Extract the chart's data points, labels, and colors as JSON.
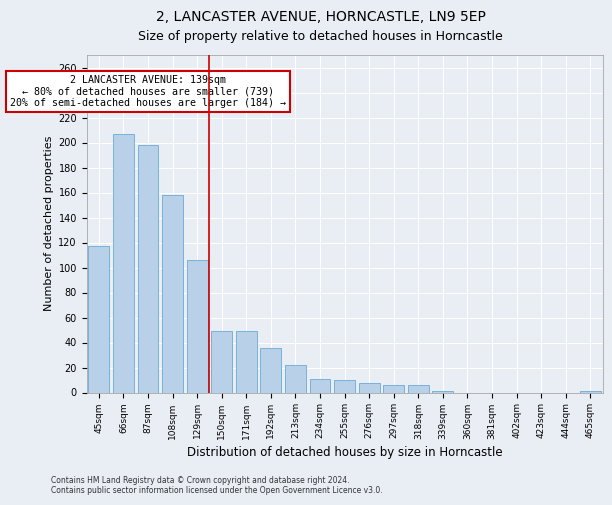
{
  "title1": "2, LANCASTER AVENUE, HORNCASTLE, LN9 5EP",
  "title2": "Size of property relative to detached houses in Horncastle",
  "xlabel": "Distribution of detached houses by size in Horncastle",
  "ylabel": "Number of detached properties",
  "categories": [
    "45sqm",
    "66sqm",
    "87sqm",
    "108sqm",
    "129sqm",
    "150sqm",
    "171sqm",
    "192sqm",
    "213sqm",
    "234sqm",
    "255sqm",
    "276sqm",
    "297sqm",
    "318sqm",
    "339sqm",
    "360sqm",
    "381sqm",
    "402sqm",
    "423sqm",
    "444sqm",
    "465sqm"
  ],
  "values": [
    117,
    207,
    198,
    158,
    106,
    49,
    49,
    36,
    22,
    11,
    10,
    8,
    6,
    6,
    1,
    0,
    0,
    0,
    0,
    0,
    1
  ],
  "bar_color": "#b8d0e8",
  "bar_edge_color": "#6aaad4",
  "vline_x": 4.5,
  "vline_color": "#cc0000",
  "annotation_text": "2 LANCASTER AVENUE: 139sqm\n← 80% of detached houses are smaller (739)\n20% of semi-detached houses are larger (184) →",
  "annotation_box_color": "#ffffff",
  "annotation_box_edge": "#cc0000",
  "ylim": [
    0,
    270
  ],
  "yticks": [
    0,
    20,
    40,
    60,
    80,
    100,
    120,
    140,
    160,
    180,
    200,
    220,
    240,
    260
  ],
  "footer": "Contains HM Land Registry data © Crown copyright and database right 2024.\nContains public sector information licensed under the Open Government Licence v3.0.",
  "background_color": "#e8eef4",
  "grid_color": "#ffffff",
  "title1_fontsize": 10,
  "title2_fontsize": 9,
  "xlabel_fontsize": 8.5,
  "ylabel_fontsize": 8
}
